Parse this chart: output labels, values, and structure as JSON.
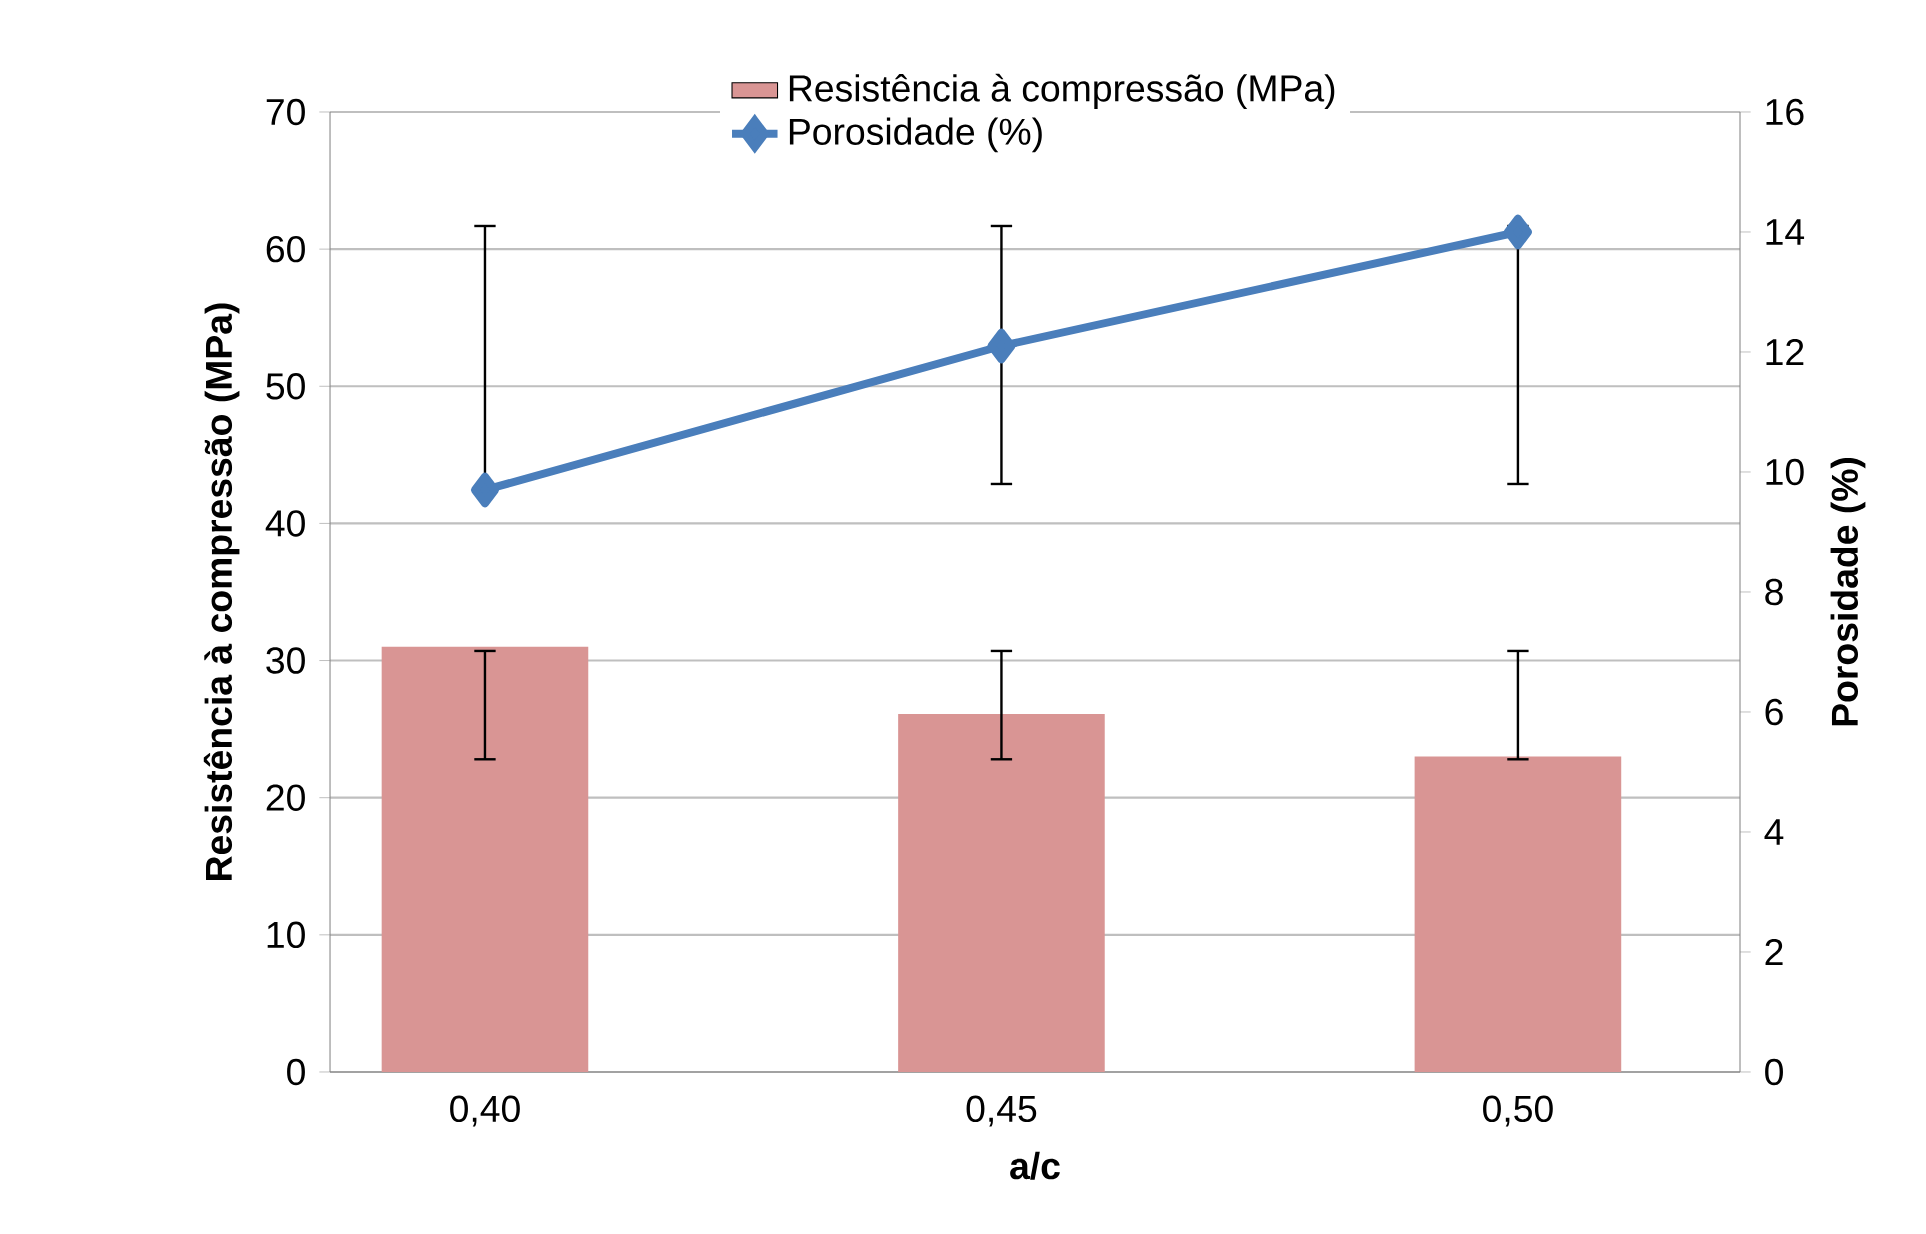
{
  "chart_data": {
    "type": "bar",
    "xlabel": "a/c",
    "ylabel": "Resistência à compressão (MPa)",
    "y2label": "Porosidade (%)",
    "categories": [
      "0,40",
      "0,45",
      "0,50"
    ],
    "series": [
      {
        "name": "Resistência à compressão (MPa)",
        "color": "#d99594",
        "values": [
          31.0,
          26.1,
          23.0
        ],
        "errors": [
          [
            22.8,
            30.7
          ],
          [
            22.8,
            30.7
          ],
          [
            22.8,
            30.7
          ]
        ]
      },
      {
        "name": "Porosidade (%)",
        "type": "line",
        "axis": "y2",
        "color": "#4a7ebb",
        "marker": "diamond",
        "values": [
          9.7,
          12.1,
          14.0
        ],
        "errors": [
          [
            9.7,
            14.1
          ],
          [
            9.8,
            14.1
          ],
          [
            9.8,
            14.1
          ]
        ]
      }
    ],
    "ylim": [
      0,
      70
    ],
    "yticks": [
      0,
      10,
      20,
      30,
      40,
      50,
      60,
      70
    ],
    "y2lim": [
      0,
      16
    ],
    "y2ticks": [
      0,
      2,
      4,
      6,
      8,
      10,
      12,
      14,
      16
    ],
    "grid": "y",
    "legend": "top"
  }
}
